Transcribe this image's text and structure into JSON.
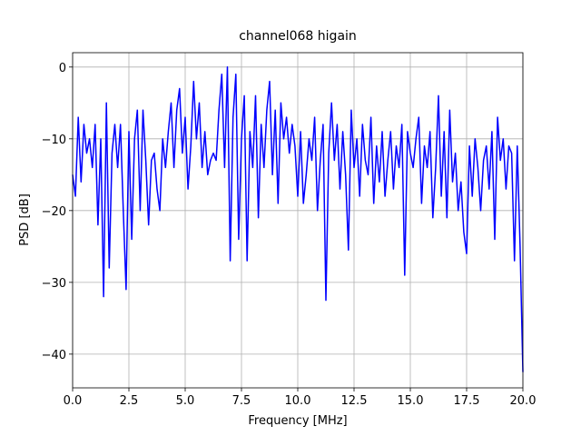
{
  "chart_data": {
    "type": "line",
    "title": "channel068 higain",
    "xlabel": "Frequency [MHz]",
    "ylabel": "PSD [dB]",
    "color": "#0000ff",
    "grid": true,
    "xlim": [
      0,
      20
    ],
    "ylim": [
      -44.7,
      2
    ],
    "xticks": [
      {
        "value": 0,
        "label": "0.0"
      },
      2.5,
      {
        "value": 5,
        "label": "5.0"
      },
      7.5,
      {
        "value": 10,
        "label": "10.0"
      },
      12.5,
      {
        "value": 15,
        "label": "15.0"
      },
      17.5,
      {
        "value": 20,
        "label": "20.0"
      }
    ],
    "yticks": [
      {
        "value": -40,
        "label": "−40"
      },
      {
        "value": -30,
        "label": "−30"
      },
      {
        "value": -20,
        "label": "−20"
      },
      {
        "value": -10,
        "label": "−10"
      },
      0
    ],
    "x": [
      0,
      0.125,
      0.25,
      0.375,
      0.5,
      0.625,
      0.75,
      0.875,
      1,
      1.125,
      1.25,
      1.375,
      1.5,
      1.625,
      1.75,
      1.875,
      2,
      2.125,
      2.25,
      2.375,
      2.5,
      2.625,
      2.75,
      2.875,
      3,
      3.125,
      3.25,
      3.375,
      3.5,
      3.625,
      3.75,
      3.875,
      4,
      4.125,
      4.25,
      4.375,
      4.5,
      4.625,
      4.75,
      4.875,
      5,
      5.125,
      5.25,
      5.375,
      5.5,
      5.625,
      5.75,
      5.875,
      6,
      6.125,
      6.25,
      6.375,
      6.5,
      6.625,
      6.75,
      6.875,
      7,
      7.125,
      7.25,
      7.375,
      7.5,
      7.625,
      7.75,
      7.875,
      8,
      8.125,
      8.25,
      8.375,
      8.5,
      8.625,
      8.75,
      8.875,
      9,
      9.125,
      9.25,
      9.375,
      9.5,
      9.625,
      9.75,
      9.875,
      10,
      10.125,
      10.25,
      10.375,
      10.5,
      10.625,
      10.75,
      10.875,
      11,
      11.125,
      11.25,
      11.375,
      11.5,
      11.625,
      11.75,
      11.875,
      12,
      12.125,
      12.25,
      12.375,
      12.5,
      12.625,
      12.75,
      12.875,
      13,
      13.125,
      13.25,
      13.375,
      13.5,
      13.625,
      13.75,
      13.875,
      14,
      14.125,
      14.25,
      14.375,
      14.5,
      14.625,
      14.75,
      14.875,
      15,
      15.125,
      15.25,
      15.375,
      15.5,
      15.625,
      15.75,
      15.875,
      16,
      16.125,
      16.25,
      16.375,
      16.5,
      16.625,
      16.75,
      16.875,
      17,
      17.125,
      17.25,
      17.375,
      17.5,
      17.625,
      17.75,
      17.875,
      18,
      18.125,
      18.25,
      18.375,
      18.5,
      18.625,
      18.75,
      18.875,
      19,
      19.125,
      19.25,
      19.375,
      19.5,
      19.625,
      19.75,
      19.875,
      20
    ],
    "values": [
      -15,
      -18,
      -7,
      -16,
      -8,
      -12,
      -10,
      -14,
      -8,
      -22,
      -10,
      -32,
      -5,
      -28,
      -12,
      -8,
      -14,
      -8,
      -20,
      -31,
      -9,
      -24,
      -10,
      -6,
      -20,
      -6,
      -13,
      -22,
      -13,
      -12,
      -17,
      -20,
      -10,
      -14,
      -9,
      -5,
      -14,
      -6,
      -3,
      -12,
      -7,
      -17,
      -11,
      -2,
      -10,
      -5,
      -14,
      -9,
      -15,
      -13,
      -12,
      -13,
      -6,
      -1,
      -14,
      0,
      -27,
      -7,
      -1,
      -24,
      -10,
      -4,
      -27,
      -9,
      -14,
      -4,
      -21,
      -8,
      -14,
      -6,
      -2,
      -15,
      -6,
      -19,
      -5,
      -10,
      -7,
      -12,
      -8,
      -11,
      -18,
      -9,
      -19,
      -15,
      -10,
      -13,
      -7,
      -20,
      -13,
      -8,
      -32.5,
      -12,
      -5,
      -13,
      -8,
      -17,
      -9,
      -15,
      -25.5,
      -6,
      -14,
      -10,
      -18,
      -8,
      -13,
      -15,
      -7,
      -19,
      -11,
      -16,
      -9,
      -18,
      -13,
      -9,
      -17,
      -11,
      -14,
      -8,
      -29,
      -9,
      -12,
      -14,
      -10,
      -7,
      -19,
      -11,
      -14,
      -9,
      -21,
      -14,
      -4,
      -18,
      -9,
      -21,
      -6,
      -16,
      -12,
      -20,
      -16,
      -23,
      -26,
      -11,
      -18,
      -10,
      -14,
      -20,
      -13,
      -11,
      -17,
      -9,
      -24,
      -7,
      -13,
      -10,
      -17,
      -11,
      -12,
      -27,
      -11,
      -25,
      -42.5
    ]
  }
}
